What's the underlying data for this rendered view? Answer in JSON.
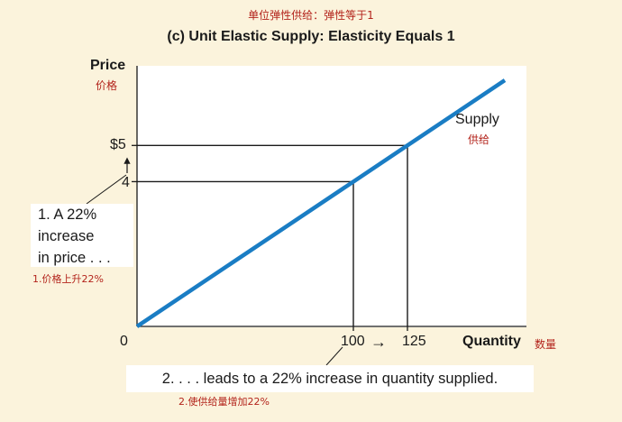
{
  "figure": {
    "title_cn": "单位弹性供给：弹性等于1",
    "title_en": "(c) Unit Elastic Supply: Elasticity Equals 1"
  },
  "chart_data": {
    "type": "line",
    "series": [
      {
        "name": "Supply",
        "name_cn": "供给",
        "x": [
          0,
          100,
          125,
          170
        ],
        "y": [
          0,
          4,
          5,
          6.8
        ],
        "color": "#1a7dc4"
      }
    ],
    "points": [
      {
        "x": 100,
        "y": 4
      },
      {
        "x": 125,
        "y": 5
      }
    ],
    "xlabel": "Quantity",
    "xlabel_cn": "数量",
    "ylabel": "Price",
    "ylabel_cn": "价格",
    "x_ticks": [
      "0",
      "100",
      "125"
    ],
    "y_ticks": [
      "$5",
      "4"
    ],
    "x_tick_values": [
      0,
      100,
      125
    ],
    "y_tick_values": [
      5,
      4
    ],
    "xlim": [
      0,
      180
    ],
    "ylim": [
      0,
      7.2
    ],
    "grid": false
  },
  "annotations": {
    "note1_lines": [
      "1. A 22%",
      "increase",
      "in price . . ."
    ],
    "note1_cn": "1.价格上升22%",
    "note2": "2.  . . . leads to a 22% increase in quantity supplied.",
    "note2_cn": "2.使供给量增加22%",
    "x_arrow": "→"
  }
}
